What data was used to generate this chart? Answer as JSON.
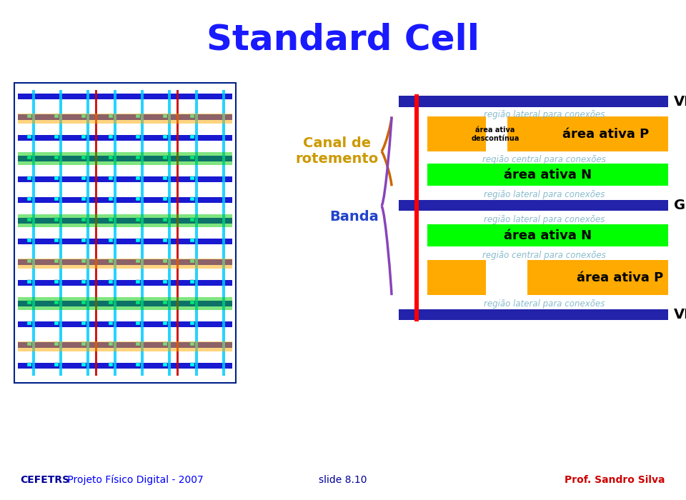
{
  "title": "Standard Cell",
  "title_color": "#1a1aff",
  "header_bg": "#6699ff",
  "bg_color": "#ffffff",
  "diagram": {
    "vdd_bar_color": "#2222aa",
    "gnd_bar_color": "#2222aa",
    "vdd_label": "VDD",
    "gnd_label": "GND",
    "area_p_color": "#ffaa00",
    "area_n_color": "#00ff00",
    "red_line_color": "#ff0000",
    "label_color": "#88bbcc",
    "text_region_lateral": "região lateral para conexões",
    "text_region_central": "região central para conexões",
    "text_area_p": "área ativa P",
    "text_area_n": "área ativa N",
    "text_area_descontínua": "área ativa\ndescontínua"
  },
  "left_labels": {
    "canal_label": "Canal de\nrotemento",
    "banda_label": "Banda",
    "canal_color": "#cc9900",
    "banda_color": "#2244cc"
  },
  "footer": {
    "left_bold": "CEFETRS",
    "left_rest": " Projeto Físico Digital - 2007",
    "center": "slide 8.10",
    "right": "Prof. Sandro Silva",
    "color_bold": "#000099",
    "color_rest": "#0000ff",
    "color_center": "#000099",
    "color_right": "#cc0000"
  }
}
